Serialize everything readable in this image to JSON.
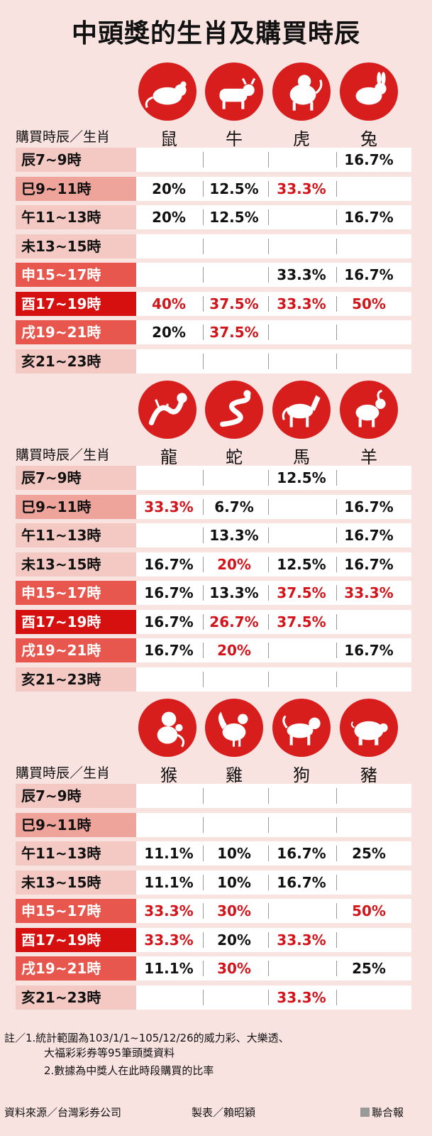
{
  "title": "中頭獎的生肖及購買時辰",
  "header_label": "購買時辰／生肖",
  "notes": {
    "line1": "註／1.統計範圍為103/1/1~105/12/26的威力彩、大樂透、",
    "line2": "大福彩彩券等95筆頭獎資料",
    "line3": "2.數據為中獎人在此時段購買的比率"
  },
  "footer": {
    "source": "資料來源／台灣彩券公司",
    "maker": "製表／賴昭穎",
    "brand": "聯合報"
  },
  "colors": {
    "accent": "#d81d1d",
    "highlight_text": "#d3141b",
    "background": "#f9e3e1"
  },
  "chart_data": {
    "type": "table",
    "title": "中頭獎的生肖及購買時辰",
    "time_slots": [
      "辰7~9時",
      "巳9~11時",
      "午11~13時",
      "未13~15時",
      "申15~17時",
      "酉17~19時",
      "戌19~21時",
      "亥21~23時"
    ],
    "slot_intensity": [
      0,
      1,
      0,
      0,
      2,
      3,
      2,
      0
    ],
    "groups": [
      {
        "animals": [
          "鼠",
          "牛",
          "虎",
          "兔"
        ],
        "icons": [
          "rat-icon",
          "ox-icon",
          "tiger-icon",
          "rabbit-icon"
        ],
        "rows": [
          [
            null,
            null,
            null,
            {
              "v": "16.7%",
              "hi": false
            }
          ],
          [
            {
              "v": "20%",
              "hi": false
            },
            {
              "v": "12.5%",
              "hi": false
            },
            {
              "v": "33.3%",
              "hi": true
            },
            null
          ],
          [
            {
              "v": "20%",
              "hi": false
            },
            {
              "v": "12.5%",
              "hi": false
            },
            null,
            {
              "v": "16.7%",
              "hi": false
            }
          ],
          [
            null,
            null,
            null,
            null
          ],
          [
            null,
            null,
            {
              "v": "33.3%",
              "hi": false
            },
            {
              "v": "16.7%",
              "hi": false
            }
          ],
          [
            {
              "v": "40%",
              "hi": true
            },
            {
              "v": "37.5%",
              "hi": true
            },
            {
              "v": "33.3%",
              "hi": true
            },
            {
              "v": "50%",
              "hi": true
            }
          ],
          [
            {
              "v": "20%",
              "hi": false
            },
            {
              "v": "37.5%",
              "hi": true
            },
            null,
            null
          ],
          [
            null,
            null,
            null,
            null
          ]
        ]
      },
      {
        "animals": [
          "龍",
          "蛇",
          "馬",
          "羊"
        ],
        "icons": [
          "dragon-icon",
          "snake-icon",
          "horse-icon",
          "goat-icon"
        ],
        "rows": [
          [
            null,
            null,
            {
              "v": "12.5%",
              "hi": false
            },
            null
          ],
          [
            {
              "v": "33.3%",
              "hi": true
            },
            {
              "v": "6.7%",
              "hi": false
            },
            null,
            {
              "v": "16.7%",
              "hi": false
            }
          ],
          [
            null,
            {
              "v": "13.3%",
              "hi": false
            },
            null,
            {
              "v": "16.7%",
              "hi": false
            }
          ],
          [
            {
              "v": "16.7%",
              "hi": false
            },
            {
              "v": "20%",
              "hi": true
            },
            {
              "v": "12.5%",
              "hi": false
            },
            {
              "v": "16.7%",
              "hi": false
            }
          ],
          [
            {
              "v": "16.7%",
              "hi": false
            },
            {
              "v": "13.3%",
              "hi": false
            },
            {
              "v": "37.5%",
              "hi": true
            },
            {
              "v": "33.3%",
              "hi": true
            }
          ],
          [
            {
              "v": "16.7%",
              "hi": false
            },
            {
              "v": "26.7%",
              "hi": true
            },
            {
              "v": "37.5%",
              "hi": true
            },
            null
          ],
          [
            {
              "v": "16.7%",
              "hi": false
            },
            {
              "v": "20%",
              "hi": true
            },
            null,
            {
              "v": "16.7%",
              "hi": false
            }
          ],
          [
            null,
            null,
            null,
            null
          ]
        ]
      },
      {
        "animals": [
          "猴",
          "雞",
          "狗",
          "豬"
        ],
        "icons": [
          "monkey-icon",
          "rooster-icon",
          "dog-icon",
          "pig-icon"
        ],
        "rows": [
          [
            null,
            null,
            null,
            null
          ],
          [
            null,
            null,
            null,
            null
          ],
          [
            {
              "v": "11.1%",
              "hi": false
            },
            {
              "v": "10%",
              "hi": false
            },
            {
              "v": "16.7%",
              "hi": false
            },
            {
              "v": "25%",
              "hi": false
            }
          ],
          [
            {
              "v": "11.1%",
              "hi": false
            },
            {
              "v": "10%",
              "hi": false
            },
            {
              "v": "16.7%",
              "hi": false
            },
            null
          ],
          [
            {
              "v": "33.3%",
              "hi": true
            },
            {
              "v": "30%",
              "hi": true
            },
            null,
            {
              "v": "50%",
              "hi": true
            }
          ],
          [
            {
              "v": "33.3%",
              "hi": true
            },
            {
              "v": "20%",
              "hi": false
            },
            {
              "v": "33.3%",
              "hi": true
            },
            null
          ],
          [
            {
              "v": "11.1%",
              "hi": false
            },
            {
              "v": "30%",
              "hi": true
            },
            null,
            {
              "v": "25%",
              "hi": false
            }
          ],
          [
            null,
            null,
            {
              "v": "33.3%",
              "hi": true
            },
            null
          ]
        ]
      }
    ]
  }
}
